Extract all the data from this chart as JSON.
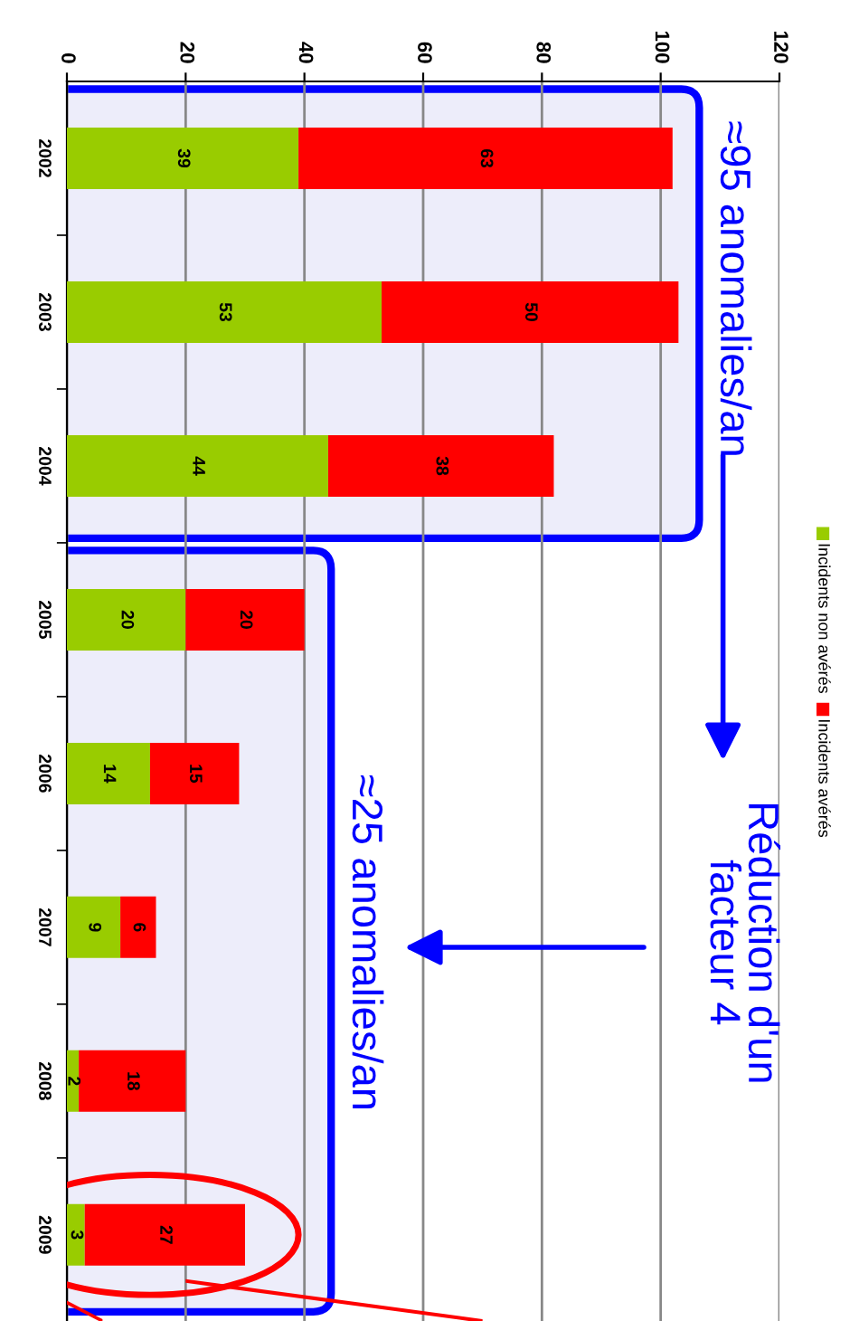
{
  "chart_data": {
    "type": "bar",
    "orientation": "horizontal",
    "stacked": true,
    "categories": [
      "2002",
      "2003",
      "2004",
      "2005",
      "2006",
      "2007",
      "2008",
      "2009"
    ],
    "series": [
      {
        "name": "Incidents non avérés",
        "color": "#99cc00",
        "values": [
          39,
          53,
          44,
          20,
          14,
          9,
          2,
          3
        ]
      },
      {
        "name": "Incidents avérés",
        "color": "#ff0000",
        "values": [
          63,
          50,
          38,
          20,
          15,
          6,
          18,
          27
        ]
      }
    ],
    "xlim": [
      0,
      120
    ],
    "xticks": [
      0,
      20,
      40,
      60,
      80,
      100,
      120
    ],
    "grid": "x",
    "legend": "right",
    "data_labels": true,
    "annotations": [
      "≈95 anomalies/an",
      "Réduction d'un\nfacteur 4",
      "≈25 anomalies/an"
    ]
  }
}
